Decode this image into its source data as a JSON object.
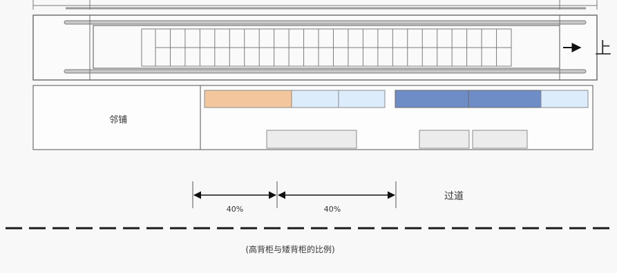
{
  "escalator": {
    "direction_label": "上",
    "colors": {
      "frame": "#6f6f6f",
      "rail": "#b8b8b8",
      "steps": "#7a7a7a"
    }
  },
  "store_zone": {
    "neighbor_label": "邻铺",
    "colors": {
      "high_orange": "#f3c69e",
      "light_blue": "#dcecfb",
      "dark_blue": "#6e8cc6",
      "low_gray": "#ececec",
      "outline": "#8a8a8a"
    }
  },
  "dimensions": {
    "left_percent": "40%",
    "right_percent": "40%",
    "aisle_label": "过道"
  },
  "caption": "(高背柜与矮背柜的比例)"
}
